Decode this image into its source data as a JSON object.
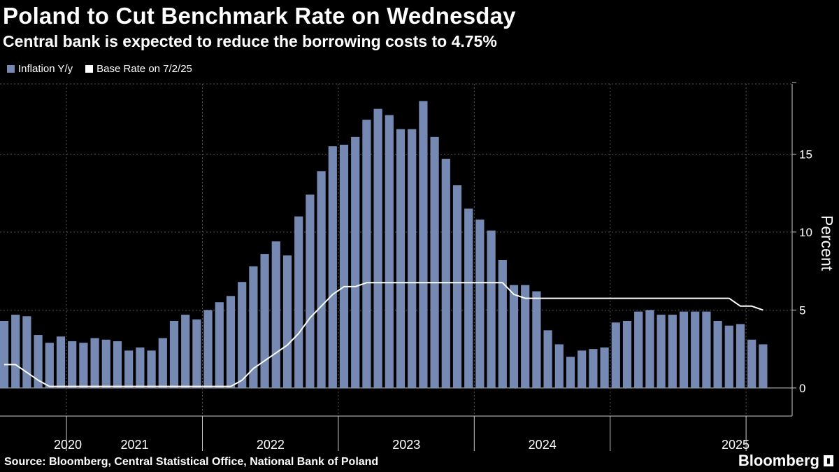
{
  "header": {
    "title": "Poland to Cut Benchmark Rate on Wednesday",
    "subtitle": "Central bank is expected to reduce the borrowing costs to 4.75%"
  },
  "legend": {
    "items": [
      {
        "label": "Inflation Y/y",
        "color": "#7589b3"
      },
      {
        "label": "Base Rate on 7/2/25",
        "color": "#ffffff"
      }
    ]
  },
  "footer": {
    "source": "Source: Bloomberg, Central Statistical Office, National Bank of Poland",
    "logo": "Bloomberg"
  },
  "chart_data": {
    "type": "bar",
    "ylabel": "Percent",
    "ylim": [
      -1.8,
      19.5
    ],
    "yticks": [
      0,
      5,
      10,
      15
    ],
    "year_labels": [
      "2020",
      "2021",
      "2022",
      "2023",
      "2024",
      "2025"
    ],
    "grid": true,
    "legend_position": "top-left",
    "start_month": "2020-01",
    "series": [
      {
        "name": "Inflation Y/y",
        "style": "bar",
        "color": "#7589b3",
        "values": [
          4.3,
          4.7,
          4.6,
          3.4,
          2.9,
          3.3,
          3.0,
          2.9,
          3.2,
          3.1,
          3.0,
          2.4,
          2.6,
          2.4,
          3.2,
          4.3,
          4.7,
          4.4,
          5.0,
          5.5,
          5.9,
          6.8,
          7.8,
          8.6,
          9.4,
          8.5,
          11.0,
          12.4,
          13.9,
          15.5,
          15.6,
          16.1,
          17.2,
          17.9,
          17.5,
          16.6,
          16.6,
          18.4,
          16.1,
          14.7,
          13.0,
          11.5,
          10.8,
          10.1,
          8.2,
          6.6,
          6.6,
          6.2,
          3.7,
          2.8,
          2.0,
          2.4,
          2.5,
          2.6,
          4.2,
          4.3,
          4.9,
          5.0,
          4.7,
          4.7,
          4.9,
          4.9,
          4.9,
          4.3,
          4.0,
          4.1,
          3.1,
          2.8
        ]
      },
      {
        "name": "Base Rate on 7/2/25",
        "style": "line",
        "color": "#ffffff",
        "values": [
          1.5,
          1.5,
          1.0,
          0.5,
          0.1,
          0.1,
          0.1,
          0.1,
          0.1,
          0.1,
          0.1,
          0.1,
          0.1,
          0.1,
          0.1,
          0.1,
          0.1,
          0.1,
          0.1,
          0.1,
          0.1,
          0.5,
          1.25,
          1.75,
          2.25,
          2.75,
          3.5,
          4.5,
          5.25,
          6.0,
          6.5,
          6.5,
          6.75,
          6.75,
          6.75,
          6.75,
          6.75,
          6.75,
          6.75,
          6.75,
          6.75,
          6.75,
          6.75,
          6.75,
          6.75,
          6.0,
          5.75,
          5.75,
          5.75,
          5.75,
          5.75,
          5.75,
          5.75,
          5.75,
          5.75,
          5.75,
          5.75,
          5.75,
          5.75,
          5.75,
          5.75,
          5.75,
          5.75,
          5.75,
          5.75,
          5.25,
          5.25,
          5.0
        ]
      }
    ]
  }
}
